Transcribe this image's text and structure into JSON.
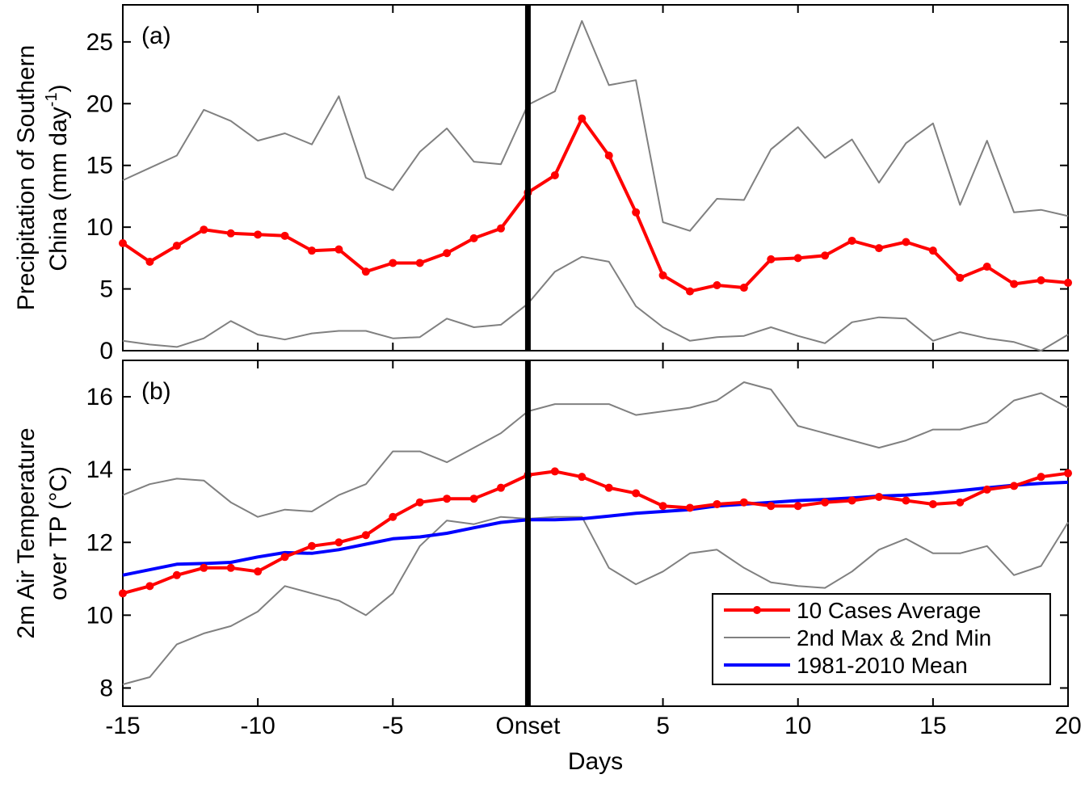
{
  "chart_data": [
    {
      "panel_label": "(a)",
      "type": "line",
      "ylabel_line1": "Precipitation of Southern",
      "ylabel_line2": "China (mm day",
      "ylabel_sup": "-1",
      "ylabel_close": ")",
      "ylim": [
        0,
        28
      ],
      "yticks": [
        0,
        5,
        10,
        15,
        20,
        25
      ],
      "x": [
        -15,
        -14,
        -13,
        -12,
        -11,
        -10,
        -9,
        -8,
        -7,
        -6,
        -5,
        -4,
        -3,
        -2,
        -1,
        0,
        1,
        2,
        3,
        4,
        5,
        6,
        7,
        8,
        9,
        10,
        11,
        12,
        13,
        14,
        15,
        16,
        17,
        18,
        19,
        20
      ],
      "series": [
        {
          "name": "10 Cases Average",
          "color": "#ff0000",
          "values": [
            8.7,
            7.2,
            8.5,
            9.8,
            9.5,
            9.4,
            9.3,
            8.1,
            8.2,
            6.4,
            7.1,
            7.1,
            7.9,
            9.1,
            9.9,
            12.8,
            14.2,
            18.8,
            15.8,
            11.2,
            6.1,
            4.8,
            5.3,
            5.1,
            7.4,
            7.5,
            7.7,
            8.9,
            8.3,
            8.8,
            8.1,
            5.9,
            6.8,
            5.4,
            5.7,
            5.5
          ]
        },
        {
          "name": "2nd Max",
          "color": "#808080",
          "values": [
            13.8,
            14.8,
            15.8,
            19.5,
            18.6,
            17.0,
            17.6,
            16.7,
            20.6,
            14.0,
            13.0,
            16.1,
            18.0,
            15.3,
            15.1,
            19.9,
            21.0,
            26.7,
            21.5,
            21.9,
            10.4,
            9.7,
            12.3,
            12.2,
            16.3,
            18.1,
            15.6,
            17.1,
            13.6,
            16.8,
            18.4,
            11.8,
            17.0,
            11.2,
            11.4,
            10.9
          ]
        },
        {
          "name": "2nd Min",
          "color": "#808080",
          "values": [
            0.8,
            0.5,
            0.3,
            1.0,
            2.4,
            1.3,
            0.9,
            1.4,
            1.6,
            1.6,
            1.0,
            1.1,
            2.6,
            1.9,
            2.1,
            3.8,
            6.4,
            7.6,
            7.2,
            3.6,
            1.9,
            0.8,
            1.1,
            1.2,
            1.9,
            1.2,
            0.6,
            2.3,
            2.7,
            2.6,
            0.8,
            1.5,
            1.0,
            0.7,
            0.0,
            1.3
          ]
        }
      ]
    },
    {
      "panel_label": "(b)",
      "type": "line",
      "xlabel": "Days",
      "ylabel_line1": "2m Air Temperature",
      "ylabel_line2": "over TP  (°C)",
      "ylim": [
        7.5,
        17.0
      ],
      "yticks": [
        8,
        10,
        12,
        14,
        16
      ],
      "x": [
        -15,
        -14,
        -13,
        -12,
        -11,
        -10,
        -9,
        -8,
        -7,
        -6,
        -5,
        -4,
        -3,
        -2,
        -1,
        0,
        1,
        2,
        3,
        4,
        5,
        6,
        7,
        8,
        9,
        10,
        11,
        12,
        13,
        14,
        15,
        16,
        17,
        18,
        19,
        20
      ],
      "xticks": [
        -15,
        -10,
        -5,
        0,
        5,
        10,
        15,
        20
      ],
      "xticklabels": [
        "-15",
        "-10",
        "-5",
        "Onset",
        "5",
        "10",
        "15",
        "20"
      ],
      "series": [
        {
          "name": "10 Cases Average",
          "color": "#ff0000",
          "values": [
            10.6,
            10.8,
            11.1,
            11.3,
            11.3,
            11.2,
            11.6,
            11.9,
            12.0,
            12.2,
            12.7,
            13.1,
            13.2,
            13.2,
            13.5,
            13.85,
            13.95,
            13.8,
            13.5,
            13.35,
            13.0,
            12.95,
            13.05,
            13.1,
            13.0,
            13.0,
            13.1,
            13.15,
            13.25,
            13.15,
            13.05,
            13.1,
            13.45,
            13.55,
            13.8,
            13.9
          ]
        },
        {
          "name": "2nd Max",
          "color": "#808080",
          "values": [
            13.3,
            13.6,
            13.75,
            13.7,
            13.1,
            12.7,
            12.9,
            12.85,
            13.3,
            13.6,
            14.5,
            14.5,
            14.2,
            14.6,
            15.0,
            15.6,
            15.8,
            15.8,
            15.8,
            15.5,
            15.6,
            15.7,
            15.9,
            16.4,
            16.2,
            15.2,
            15.0,
            14.8,
            14.6,
            14.8,
            15.1,
            15.1,
            15.3,
            15.9,
            16.1,
            15.7
          ]
        },
        {
          "name": "2nd Min",
          "color": "#808080",
          "values": [
            8.1,
            8.3,
            9.2,
            9.5,
            9.7,
            10.1,
            10.8,
            10.6,
            10.4,
            10.0,
            10.6,
            11.9,
            12.6,
            12.5,
            12.7,
            12.65,
            12.7,
            12.7,
            11.3,
            10.85,
            11.2,
            11.7,
            11.8,
            11.3,
            10.9,
            10.8,
            10.75,
            11.2,
            11.8,
            12.1,
            11.7,
            11.7,
            11.9,
            11.1,
            11.35,
            12.55
          ]
        },
        {
          "name": "1981-2010 Mean",
          "color": "#0000ff",
          "values": [
            11.1,
            11.25,
            11.4,
            11.42,
            11.45,
            11.6,
            11.72,
            11.7,
            11.8,
            11.95,
            12.1,
            12.15,
            12.25,
            12.4,
            12.55,
            12.62,
            12.62,
            12.65,
            12.72,
            12.8,
            12.85,
            12.9,
            13.0,
            13.05,
            13.1,
            13.15,
            13.18,
            13.22,
            13.27,
            13.3,
            13.35,
            13.42,
            13.5,
            13.57,
            13.62,
            13.65
          ]
        }
      ]
    }
  ],
  "legend": {
    "placement": "lower-right",
    "entries": [
      {
        "label": "10 Cases Average",
        "color": "#ff0000"
      },
      {
        "label": "2nd Max & 2nd Min",
        "color": "#808080"
      },
      {
        "label": "1981-2010 Mean",
        "color": "#0000ff"
      }
    ]
  },
  "onset_line": {
    "x": 0,
    "color": "#000000"
  }
}
